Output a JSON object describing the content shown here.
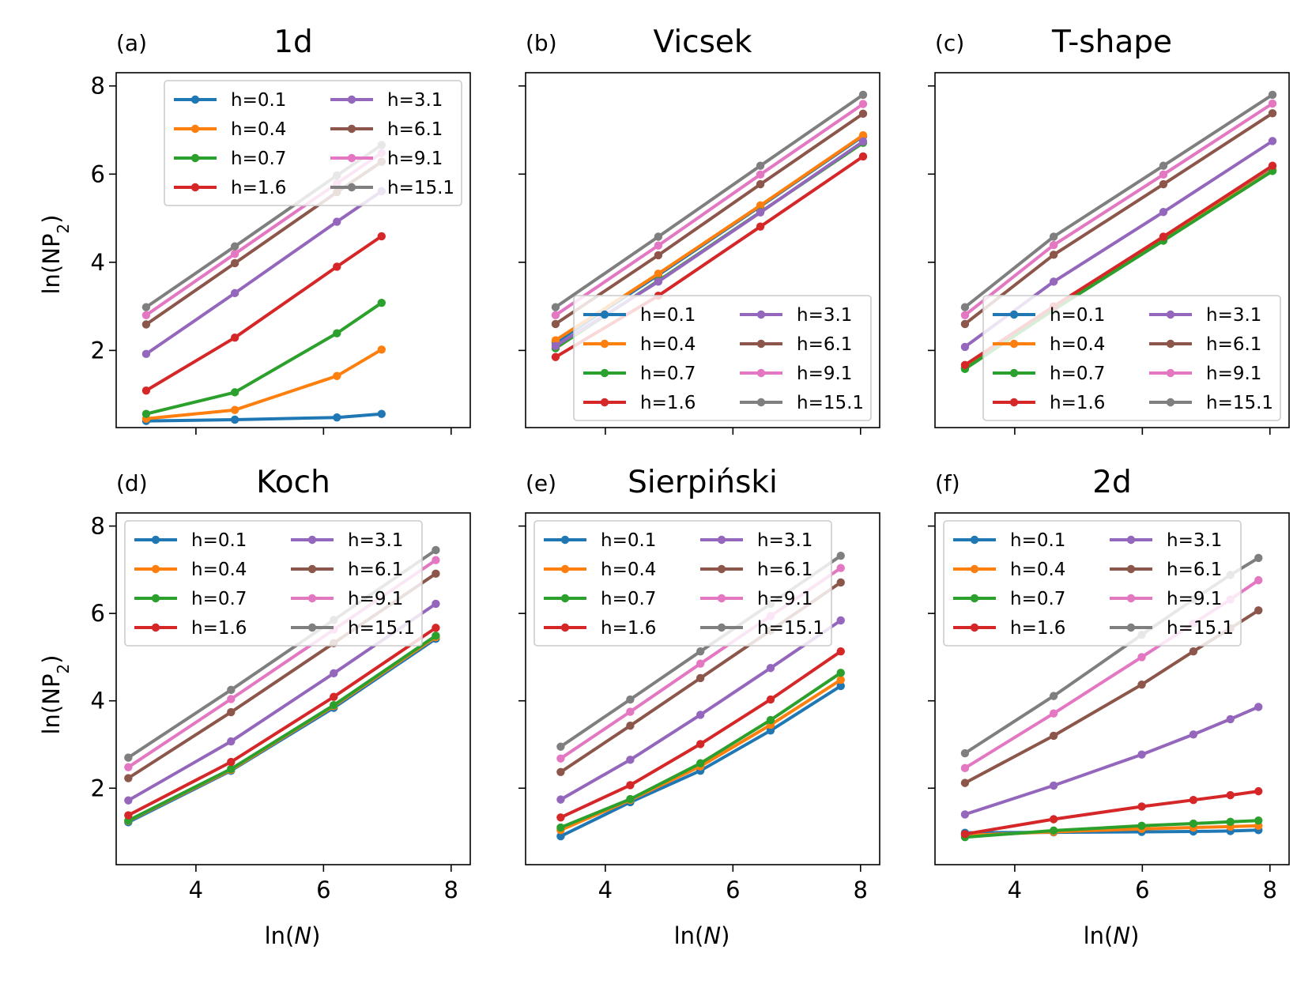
{
  "figure": {
    "ylabel_main": "ln(NP",
    "ylabel_sub": "2",
    "ylabel_close": ")",
    "xlabel_main": "ln(",
    "xlabel_var": "N",
    "xlabel_close": ")"
  },
  "chart_data": [
    {
      "type": "line",
      "tag": "(a)",
      "title": "1d",
      "xlim": [
        2.75,
        8.3
      ],
      "ylim": [
        0.25,
        8.3
      ],
      "xticks": [
        4,
        6,
        8
      ],
      "yticks": [
        2,
        4,
        6,
        8
      ],
      "legend_loc": "upper-right",
      "series": [
        {
          "name": "h=0.1",
          "color": "#1f77b4",
          "x": [
            3.22,
            4.61,
            6.21,
            6.91
          ],
          "y": [
            0.4,
            0.43,
            0.48,
            0.56
          ]
        },
        {
          "name": "h=0.4",
          "color": "#ff7f0e",
          "x": [
            3.22,
            4.61,
            6.21,
            6.91
          ],
          "y": [
            0.45,
            0.65,
            1.42,
            2.02
          ]
        },
        {
          "name": "h=0.7",
          "color": "#2ca02c",
          "x": [
            3.22,
            4.61,
            6.21,
            6.91
          ],
          "y": [
            0.56,
            1.05,
            2.39,
            3.08
          ]
        },
        {
          "name": "h=1.6",
          "color": "#d62728",
          "x": [
            3.22,
            4.61,
            6.21,
            6.91
          ],
          "y": [
            1.09,
            2.29,
            3.9,
            4.59
          ]
        },
        {
          "name": "h=3.1",
          "color": "#9467bd",
          "x": [
            3.22,
            4.61,
            6.21,
            6.91
          ],
          "y": [
            1.92,
            3.3,
            4.92,
            5.61
          ]
        },
        {
          "name": "h=6.1",
          "color": "#8c564b",
          "x": [
            3.22,
            4.61,
            6.21,
            6.91
          ],
          "y": [
            2.59,
            3.98,
            5.59,
            6.28
          ]
        },
        {
          "name": "h=9.1",
          "color": "#e377c2",
          "x": [
            3.22,
            4.61,
            6.21,
            6.91
          ],
          "y": [
            2.8,
            4.19,
            5.79,
            6.48
          ]
        },
        {
          "name": "h=15.1",
          "color": "#7f7f7f",
          "x": [
            3.22,
            4.61,
            6.21,
            6.91
          ],
          "y": [
            2.98,
            4.36,
            5.97,
            6.66
          ]
        }
      ]
    },
    {
      "type": "line",
      "tag": "(b)",
      "title": "Vicsek",
      "xlim": [
        2.75,
        8.3
      ],
      "ylim": [
        0.25,
        8.3
      ],
      "xticks": [
        4,
        6,
        8
      ],
      "yticks": [
        2,
        4,
        6,
        8
      ],
      "legend_loc": "lower-right",
      "series": [
        {
          "name": "h=0.1",
          "color": "#1f77b4",
          "x": [
            3.22,
            4.83,
            6.43,
            8.04
          ],
          "y": [
            2.18,
            3.71,
            5.27,
            6.86
          ]
        },
        {
          "name": "h=0.4",
          "color": "#ff7f0e",
          "x": [
            3.22,
            4.83,
            6.43,
            8.04
          ],
          "y": [
            2.23,
            3.74,
            5.29,
            6.88
          ]
        },
        {
          "name": "h=0.7",
          "color": "#2ca02c",
          "x": [
            3.22,
            4.83,
            6.43,
            8.04
          ],
          "y": [
            2.05,
            3.58,
            5.14,
            6.71
          ]
        },
        {
          "name": "h=1.6",
          "color": "#d62728",
          "x": [
            3.22,
            4.83,
            6.43,
            8.04
          ],
          "y": [
            1.85,
            3.24,
            4.81,
            6.4
          ]
        },
        {
          "name": "h=3.1",
          "color": "#9467bd",
          "x": [
            3.22,
            4.83,
            6.43,
            8.04
          ],
          "y": [
            2.1,
            3.56,
            5.13,
            6.74
          ]
        },
        {
          "name": "h=6.1",
          "color": "#8c564b",
          "x": [
            3.22,
            4.83,
            6.43,
            8.04
          ],
          "y": [
            2.6,
            4.16,
            5.77,
            7.37
          ]
        },
        {
          "name": "h=9.1",
          "color": "#e377c2",
          "x": [
            3.22,
            4.83,
            6.43,
            8.04
          ],
          "y": [
            2.8,
            4.38,
            5.99,
            7.59
          ]
        },
        {
          "name": "h=15.1",
          "color": "#7f7f7f",
          "x": [
            3.22,
            4.83,
            6.43,
            8.04
          ],
          "y": [
            2.98,
            4.58,
            6.19,
            7.8
          ]
        }
      ]
    },
    {
      "type": "line",
      "tag": "(c)",
      "title": "T-shape",
      "xlim": [
        2.75,
        8.3
      ],
      "ylim": [
        0.25,
        8.3
      ],
      "xticks": [
        4,
        6,
        8
      ],
      "yticks": [
        2,
        4,
        6,
        8
      ],
      "legend_loc": "lower-right",
      "series": [
        {
          "name": "h=0.1",
          "color": "#1f77b4",
          "x": [
            3.22,
            4.61,
            6.33,
            8.04
          ],
          "y": [
            1.6,
            2.94,
            4.51,
            6.1
          ]
        },
        {
          "name": "h=0.4",
          "color": "#ff7f0e",
          "x": [
            3.22,
            4.61,
            6.33,
            8.04
          ],
          "y": [
            1.62,
            2.95,
            4.51,
            6.09
          ]
        },
        {
          "name": "h=0.7",
          "color": "#2ca02c",
          "x": [
            3.22,
            4.61,
            6.33,
            8.04
          ],
          "y": [
            1.58,
            2.92,
            4.49,
            6.07
          ]
        },
        {
          "name": "h=1.6",
          "color": "#d62728",
          "x": [
            3.22,
            4.61,
            6.33,
            8.04
          ],
          "y": [
            1.67,
            3.0,
            4.58,
            6.19
          ]
        },
        {
          "name": "h=3.1",
          "color": "#9467bd",
          "x": [
            3.22,
            4.61,
            6.33,
            8.04
          ],
          "y": [
            2.08,
            3.56,
            5.14,
            6.75
          ]
        },
        {
          "name": "h=6.1",
          "color": "#8c564b",
          "x": [
            3.22,
            4.61,
            6.33,
            8.04
          ],
          "y": [
            2.6,
            4.17,
            5.77,
            7.38
          ]
        },
        {
          "name": "h=9.1",
          "color": "#e377c2",
          "x": [
            3.22,
            4.61,
            6.33,
            8.04
          ],
          "y": [
            2.8,
            4.39,
            5.99,
            7.6
          ]
        },
        {
          "name": "h=15.1",
          "color": "#7f7f7f",
          "x": [
            3.22,
            4.61,
            6.33,
            8.04
          ],
          "y": [
            2.98,
            4.58,
            6.19,
            7.8
          ]
        }
      ]
    },
    {
      "type": "line",
      "tag": "(d)",
      "title": "Koch",
      "xlim": [
        2.75,
        8.3
      ],
      "ylim": [
        0.25,
        8.3
      ],
      "xticks": [
        4,
        6,
        8
      ],
      "yticks": [
        2,
        4,
        6,
        8
      ],
      "legend_loc": "upper-left",
      "series": [
        {
          "name": "h=0.1",
          "color": "#1f77b4",
          "x": [
            2.94,
            4.55,
            6.16,
            7.76
          ],
          "y": [
            1.22,
            2.4,
            3.84,
            5.42
          ]
        },
        {
          "name": "h=0.4",
          "color": "#ff7f0e",
          "x": [
            2.94,
            4.55,
            6.16,
            7.76
          ],
          "y": [
            1.25,
            2.42,
            3.88,
            5.46
          ]
        },
        {
          "name": "h=0.7",
          "color": "#2ca02c",
          "x": [
            2.94,
            4.55,
            6.16,
            7.76
          ],
          "y": [
            1.26,
            2.44,
            3.9,
            5.49
          ]
        },
        {
          "name": "h=1.6",
          "color": "#d62728",
          "x": [
            2.94,
            4.55,
            6.16,
            7.76
          ],
          "y": [
            1.38,
            2.6,
            4.09,
            5.67
          ]
        },
        {
          "name": "h=3.1",
          "color": "#9467bd",
          "x": [
            2.94,
            4.55,
            6.16,
            7.76
          ],
          "y": [
            1.72,
            3.07,
            4.63,
            6.22
          ]
        },
        {
          "name": "h=6.1",
          "color": "#8c564b",
          "x": [
            2.94,
            4.55,
            6.16,
            7.76
          ],
          "y": [
            2.23,
            3.74,
            5.32,
            6.91
          ]
        },
        {
          "name": "h=9.1",
          "color": "#e377c2",
          "x": [
            2.94,
            4.55,
            6.16,
            7.76
          ],
          "y": [
            2.48,
            4.04,
            5.63,
            7.22
          ]
        },
        {
          "name": "h=15.1",
          "color": "#7f7f7f",
          "x": [
            2.94,
            4.55,
            6.16,
            7.76
          ],
          "y": [
            2.7,
            4.25,
            5.85,
            7.45
          ]
        }
      ]
    },
    {
      "type": "line",
      "tag": "(e)",
      "title": "Sierpiński",
      "xlim": [
        2.75,
        8.3
      ],
      "ylim": [
        0.25,
        8.3
      ],
      "xticks": [
        4,
        6,
        8
      ],
      "yticks": [
        2,
        4,
        6,
        8
      ],
      "legend_loc": "upper-left",
      "series": [
        {
          "name": "h=0.1",
          "color": "#1f77b4",
          "x": [
            3.3,
            4.39,
            5.49,
            6.59,
            7.69
          ],
          "y": [
            0.9,
            1.68,
            2.4,
            3.32,
            4.34
          ]
        },
        {
          "name": "h=0.4",
          "color": "#ff7f0e",
          "x": [
            3.3,
            4.39,
            5.49,
            6.59,
            7.69
          ],
          "y": [
            1.04,
            1.73,
            2.5,
            3.45,
            4.48
          ]
        },
        {
          "name": "h=0.7",
          "color": "#2ca02c",
          "x": [
            3.3,
            4.39,
            5.49,
            6.59,
            7.69
          ],
          "y": [
            1.1,
            1.75,
            2.57,
            3.56,
            4.64
          ]
        },
        {
          "name": "h=1.6",
          "color": "#d62728",
          "x": [
            3.3,
            4.39,
            5.49,
            6.59,
            7.69
          ],
          "y": [
            1.33,
            2.07,
            3.01,
            4.03,
            5.13
          ]
        },
        {
          "name": "h=3.1",
          "color": "#9467bd",
          "x": [
            3.3,
            4.39,
            5.49,
            6.59,
            7.69
          ],
          "y": [
            1.74,
            2.65,
            3.68,
            4.75,
            5.84
          ]
        },
        {
          "name": "h=6.1",
          "color": "#8c564b",
          "x": [
            3.3,
            4.39,
            5.49,
            6.59,
            7.69
          ],
          "y": [
            2.37,
            3.43,
            4.52,
            5.61,
            6.71
          ]
        },
        {
          "name": "h=9.1",
          "color": "#e377c2",
          "x": [
            3.3,
            4.39,
            5.49,
            6.59,
            7.69
          ],
          "y": [
            2.68,
            3.75,
            4.85,
            5.94,
            7.04
          ]
        },
        {
          "name": "h=15.1",
          "color": "#7f7f7f",
          "x": [
            3.3,
            4.39,
            5.49,
            6.59,
            7.69
          ],
          "y": [
            2.95,
            4.03,
            5.13,
            6.22,
            7.32
          ]
        }
      ]
    },
    {
      "type": "line",
      "tag": "(f)",
      "title": "2d",
      "xlim": [
        2.75,
        8.3
      ],
      "ylim": [
        0.25,
        8.3
      ],
      "xticks": [
        4,
        6,
        8
      ],
      "yticks": [
        2,
        4,
        6,
        8
      ],
      "legend_loc": "upper-left",
      "series": [
        {
          "name": "h=0.1",
          "color": "#1f77b4",
          "x": [
            3.22,
            4.61,
            5.99,
            6.8,
            7.38,
            7.82
          ],
          "y": [
            0.98,
            0.99,
            1.0,
            1.01,
            1.02,
            1.04
          ]
        },
        {
          "name": "h=0.4",
          "color": "#ff7f0e",
          "x": [
            3.22,
            4.61,
            5.99,
            6.8,
            7.38,
            7.82
          ],
          "y": [
            0.92,
            1.0,
            1.07,
            1.1,
            1.12,
            1.14
          ]
        },
        {
          "name": "h=0.7",
          "color": "#2ca02c",
          "x": [
            3.22,
            4.61,
            5.99,
            6.8,
            7.38,
            7.82
          ],
          "y": [
            0.88,
            1.03,
            1.14,
            1.19,
            1.23,
            1.26
          ]
        },
        {
          "name": "h=1.6",
          "color": "#d62728",
          "x": [
            3.22,
            4.61,
            5.99,
            6.8,
            7.38,
            7.82
          ],
          "y": [
            0.95,
            1.29,
            1.58,
            1.73,
            1.84,
            1.93
          ]
        },
        {
          "name": "h=3.1",
          "color": "#9467bd",
          "x": [
            3.22,
            4.61,
            5.99,
            6.8,
            7.38,
            7.82
          ],
          "y": [
            1.4,
            2.06,
            2.77,
            3.23,
            3.58,
            3.86
          ]
        },
        {
          "name": "h=6.1",
          "color": "#8c564b",
          "x": [
            3.22,
            4.61,
            5.99,
            6.8,
            7.38,
            7.82
          ],
          "y": [
            2.12,
            3.2,
            4.37,
            5.13,
            5.66,
            6.07
          ]
        },
        {
          "name": "h=9.1",
          "color": "#e377c2",
          "x": [
            3.22,
            4.61,
            5.99,
            6.8,
            7.38,
            7.82
          ],
          "y": [
            2.46,
            3.71,
            5.0,
            5.77,
            6.32,
            6.76
          ]
        },
        {
          "name": "h=15.1",
          "color": "#7f7f7f",
          "x": [
            3.22,
            4.61,
            5.99,
            6.8,
            7.38,
            7.82
          ],
          "y": [
            2.8,
            4.11,
            5.51,
            6.32,
            6.88,
            7.27
          ]
        }
      ]
    }
  ]
}
